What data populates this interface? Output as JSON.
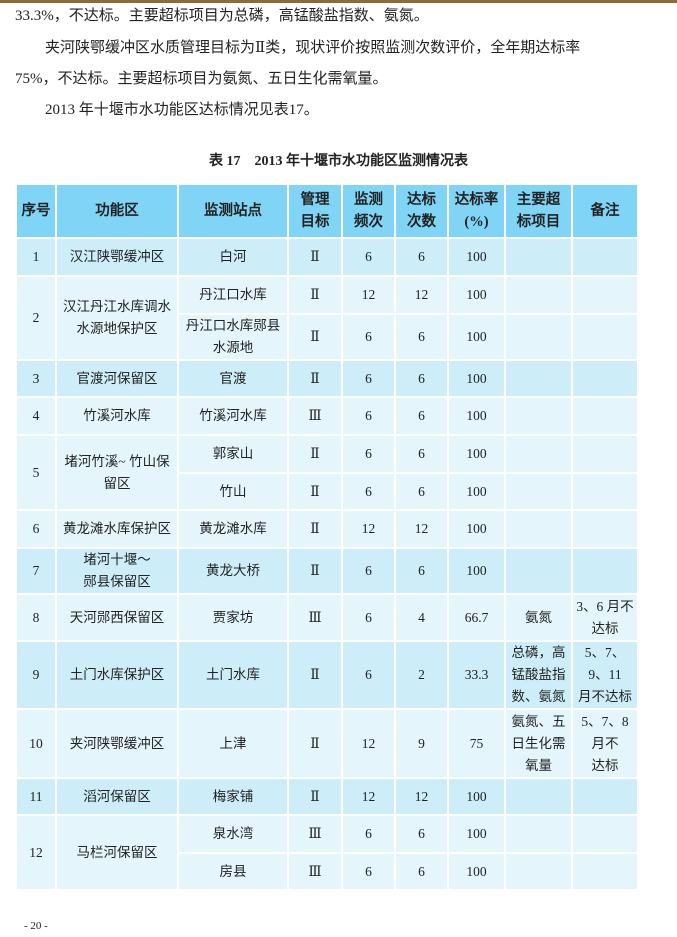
{
  "paragraphs": [
    "33.3%，不达标。主要超标项目为总磷，高锰酸盐指数、氨氮。",
    "夹河陕鄂缓冲区水质管理目标为Ⅱ类，现状评价按照监测次数评价，全年期达标率",
    "75%，不达标。主要超标项目为氨氮、五日生化需氧量。",
    "2013 年十堰市水功能区达标情况见表17。"
  ],
  "table_caption": "表 17　2013 年十堰市水功能区监测情况表",
  "table": {
    "headers": [
      "序号",
      "功能区",
      "监测站点",
      "管理\n目标",
      "监测\n频次",
      "达标\n次数",
      "达标率\n(%)",
      "主要超\n标项目",
      "备注"
    ],
    "groups": [
      {
        "no": "1",
        "zone": "汉江陕鄂缓冲区",
        "shade": "dark",
        "rows": [
          {
            "station": "白河",
            "target": "Ⅱ",
            "freq": "6",
            "count": "6",
            "rate": "100",
            "items": "",
            "note": ""
          }
        ]
      },
      {
        "no": "2",
        "zone": "汉江丹江水库调水\n水源地保护区",
        "shade": "light",
        "rows": [
          {
            "station": "丹江口水库",
            "target": "Ⅱ",
            "freq": "12",
            "count": "12",
            "rate": "100",
            "items": "",
            "note": ""
          },
          {
            "station": "丹江口水库郧县\n水源地",
            "target": "Ⅱ",
            "freq": "6",
            "count": "6",
            "rate": "100",
            "items": "",
            "note": ""
          }
        ]
      },
      {
        "no": "3",
        "zone": "官渡河保留区",
        "shade": "dark",
        "rows": [
          {
            "station": "官渡",
            "target": "Ⅱ",
            "freq": "6",
            "count": "6",
            "rate": "100",
            "items": "",
            "note": ""
          }
        ]
      },
      {
        "no": "4",
        "zone": "竹溪河水库",
        "shade": "light",
        "rows": [
          {
            "station": "竹溪河水库",
            "target": "Ⅲ",
            "freq": "6",
            "count": "6",
            "rate": "100",
            "items": "",
            "note": ""
          }
        ]
      },
      {
        "no": "5",
        "zone": "堵河竹溪~ 竹山保\n留区",
        "shade": "light",
        "rows": [
          {
            "station": "郭家山",
            "target": "Ⅱ",
            "freq": "6",
            "count": "6",
            "rate": "100",
            "items": "",
            "note": ""
          },
          {
            "station": "竹山",
            "target": "Ⅱ",
            "freq": "6",
            "count": "6",
            "rate": "100",
            "items": "",
            "note": ""
          }
        ]
      },
      {
        "no": "6",
        "zone": "黄龙滩水库保护区",
        "shade": "light",
        "rows": [
          {
            "station": "黄龙滩水库",
            "target": "Ⅱ",
            "freq": "12",
            "count": "12",
            "rate": "100",
            "items": "",
            "note": ""
          }
        ]
      },
      {
        "no": "7",
        "zone": "堵河十堰～\n郧县保留区",
        "shade": "dark",
        "rows": [
          {
            "station": "黄龙大桥",
            "target": "Ⅱ",
            "freq": "6",
            "count": "6",
            "rate": "100",
            "items": "",
            "note": ""
          }
        ]
      },
      {
        "no": "8",
        "zone": "天河郧西保留区",
        "shade": "light",
        "rows": [
          {
            "station": "贾家坊",
            "target": "Ⅲ",
            "freq": "6",
            "count": "4",
            "rate": "66.7",
            "items": "氨氮",
            "note": "3、6 月不\n达标"
          }
        ]
      },
      {
        "no": "9",
        "zone": "土门水库保护区",
        "shade": "dark",
        "rows": [
          {
            "station": "土门水库",
            "target": "Ⅱ",
            "freq": "6",
            "count": "2",
            "rate": "33.3",
            "items": "总磷，高\n锰酸盐指\n数、氨氮",
            "note": "5、7、9、11\n月不达标"
          }
        ]
      },
      {
        "no": "10",
        "zone": "夹河陕鄂缓冲区",
        "shade": "light",
        "rows": [
          {
            "station": "上津",
            "target": "Ⅱ",
            "freq": "12",
            "count": "9",
            "rate": "75",
            "items": "氨氮、五\n日生化需\n氧量",
            "note": "5、7、8 月不\n达标"
          }
        ]
      },
      {
        "no": "11",
        "zone": "滔河保留区",
        "shade": "dark",
        "rows": [
          {
            "station": "梅家铺",
            "target": "Ⅱ",
            "freq": "12",
            "count": "12",
            "rate": "100",
            "items": "",
            "note": ""
          }
        ]
      },
      {
        "no": "12",
        "zone": "马栏河保留区",
        "shade": "light",
        "rows": [
          {
            "station": "泉水湾",
            "target": "Ⅲ",
            "freq": "6",
            "count": "6",
            "rate": "100",
            "items": "",
            "note": ""
          },
          {
            "station": "房县",
            "target": "Ⅲ",
            "freq": "6",
            "count": "6",
            "rate": "100",
            "items": "",
            "note": ""
          }
        ]
      }
    ]
  },
  "page_number": "- 20 -"
}
